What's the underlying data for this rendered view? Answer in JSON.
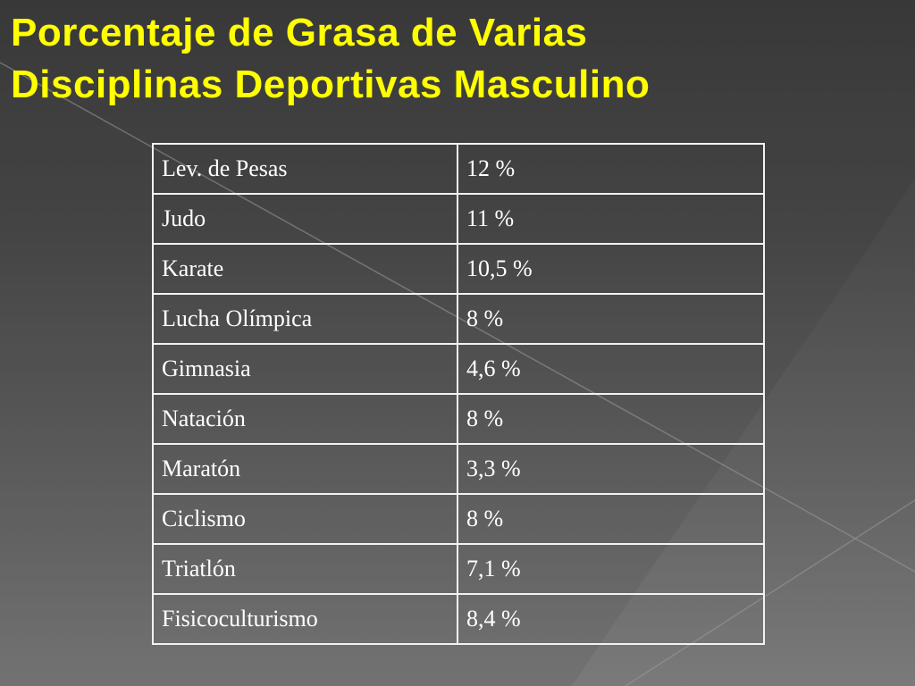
{
  "slide": {
    "title_line1": "Porcentaje de Grasa de Varias",
    "title_line2": "Disciplinas Deportivas Masculino"
  },
  "table": {
    "rows": [
      {
        "sport": "Lev.  de Pesas",
        "fat": "12 %"
      },
      {
        "sport": "Judo",
        "fat": "11 %"
      },
      {
        "sport": "Karate",
        "fat": "10,5 %"
      },
      {
        "sport": "Lucha Olímpica",
        "fat": "8 %"
      },
      {
        "sport": "Gimnasia",
        "fat": "4,6 %"
      },
      {
        "sport": "Natación",
        "fat": "8 %"
      },
      {
        "sport": "Maratón",
        "fat": "3,3 %"
      },
      {
        "sport": "Ciclismo",
        "fat": "8 %"
      },
      {
        "sport": "Triatlón",
        "fat": "7,1 %"
      },
      {
        "sport": "Fisicoculturismo",
        "fat": "8,4 %"
      }
    ]
  },
  "colors": {
    "title": "#ffff00",
    "text": "#ffffff",
    "border": "#f2f2f2"
  }
}
